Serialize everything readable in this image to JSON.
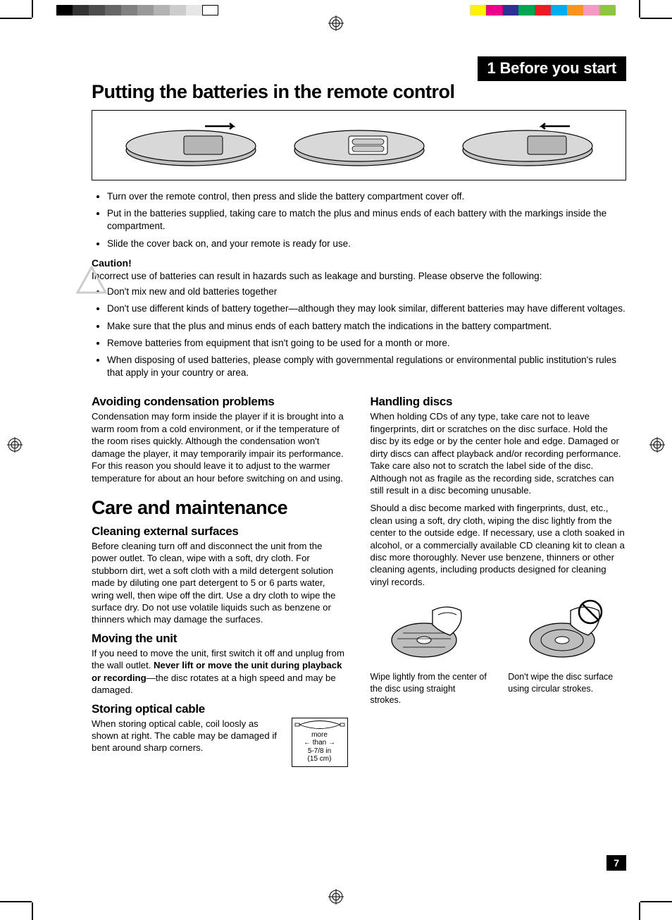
{
  "chapter_label": "1 Before you start",
  "title1": "Putting the batteries in the remote control",
  "bullets1": [
    "Turn over the remote control, then press and slide the battery compartment cover off.",
    "Put in the batteries supplied, taking care to match the plus and minus ends of each battery with the markings inside the compartment.",
    "Slide the cover back on, and your remote is ready for use."
  ],
  "caution_head": "Caution!",
  "caution_text": "Incorrect use of batteries can result in hazards such as leakage and bursting. Please observe the following:",
  "caution_bullets": [
    "Don't mix new and old batteries together",
    "Don't use different kinds of battery together—although they may look similar, different batteries may have different voltages.",
    "Make sure that the plus and minus ends of each battery match the indications in the battery compartment.",
    "Remove batteries from equipment that isn't going to be used for a month or more.",
    "When disposing of used batteries, please comply with governmental regulations or environmental public institution's rules that apply in your country or area."
  ],
  "left": {
    "condensation_h": "Avoiding condensation problems",
    "condensation_p": "Condensation may form inside the player if it is brought into a warm room from a cold environment, or if the temperature of the room rises quickly. Although the condensation won't damage the player, it may temporarily impair its performance. For this reason you should leave it to adjust to the warmer temperature for about an hour before switching on and using.",
    "care_h": "Care and maintenance",
    "cleaning_h": "Cleaning external surfaces",
    "cleaning_p": "Before cleaning turn off and disconnect the unit from the power outlet. To clean, wipe with a soft, dry cloth. For stubborn dirt, wet a soft cloth with a mild detergent solution made by diluting one part detergent to 5 or 6 parts water, wring well, then wipe off the dirt. Use a dry cloth to wipe the surface dry. Do not use volatile liquids such as benzene or thinners which may damage the surfaces.",
    "moving_h": "Moving the unit",
    "moving_p_a": "If you need to move the unit, first switch it off and unplug from the wall outlet. ",
    "moving_p_b": "Never lift or move the unit during playback or recording",
    "moving_p_c": "—the disc rotates at a high speed and may be damaged.",
    "optical_h": "Storing optical cable",
    "optical_p": "When storing optical cable, coil loosly as shown at right. The cable may be damaged if bent around sharp corners.",
    "coil_label_a": "more",
    "coil_label_b": "than",
    "coil_label_c": "5-7/8 in",
    "coil_label_d": "(15 cm)"
  },
  "right": {
    "handling_h": "Handling discs",
    "handling_p1": "When holding CDs of any type, take care not to leave fingerprints, dirt or scratches on the disc surface. Hold the disc by its edge or by the center hole and edge. Damaged or dirty discs can affect playback and/or recording performance. Take care also not to scratch the label side of the disc. Although not as fragile as the recording side, scratches can still result in a disc becoming unusable.",
    "handling_p2": "Should a disc become marked with fingerprints, dust, etc., clean using a soft, dry cloth, wiping the disc lightly from the center to the outside edge. If necessary, use a cloth soaked in alcohol, or a commercially available CD cleaning kit to clean a disc more thoroughly. Never use benzene, thinners or other cleaning agents, including products designed for cleaning vinyl records.",
    "fig1_caption": "Wipe lightly from the center of the disc using straight strokes.",
    "fig2_caption": "Don't wipe the disc surface using circular strokes."
  },
  "page_number": "7",
  "colors": {
    "grays": [
      "#000000",
      "#333333",
      "#4d4d4d",
      "#666666",
      "#808080",
      "#999999",
      "#b3b3b3",
      "#cccccc",
      "#e6e6e6",
      "#ffffff"
    ],
    "cmyk": [
      "#fff200",
      "#ec008c",
      "#2e3192",
      "#00a651",
      "#ed1c24",
      "#00aeef",
      "#f7941d",
      "#f49ac1",
      "#8dc63f"
    ]
  }
}
